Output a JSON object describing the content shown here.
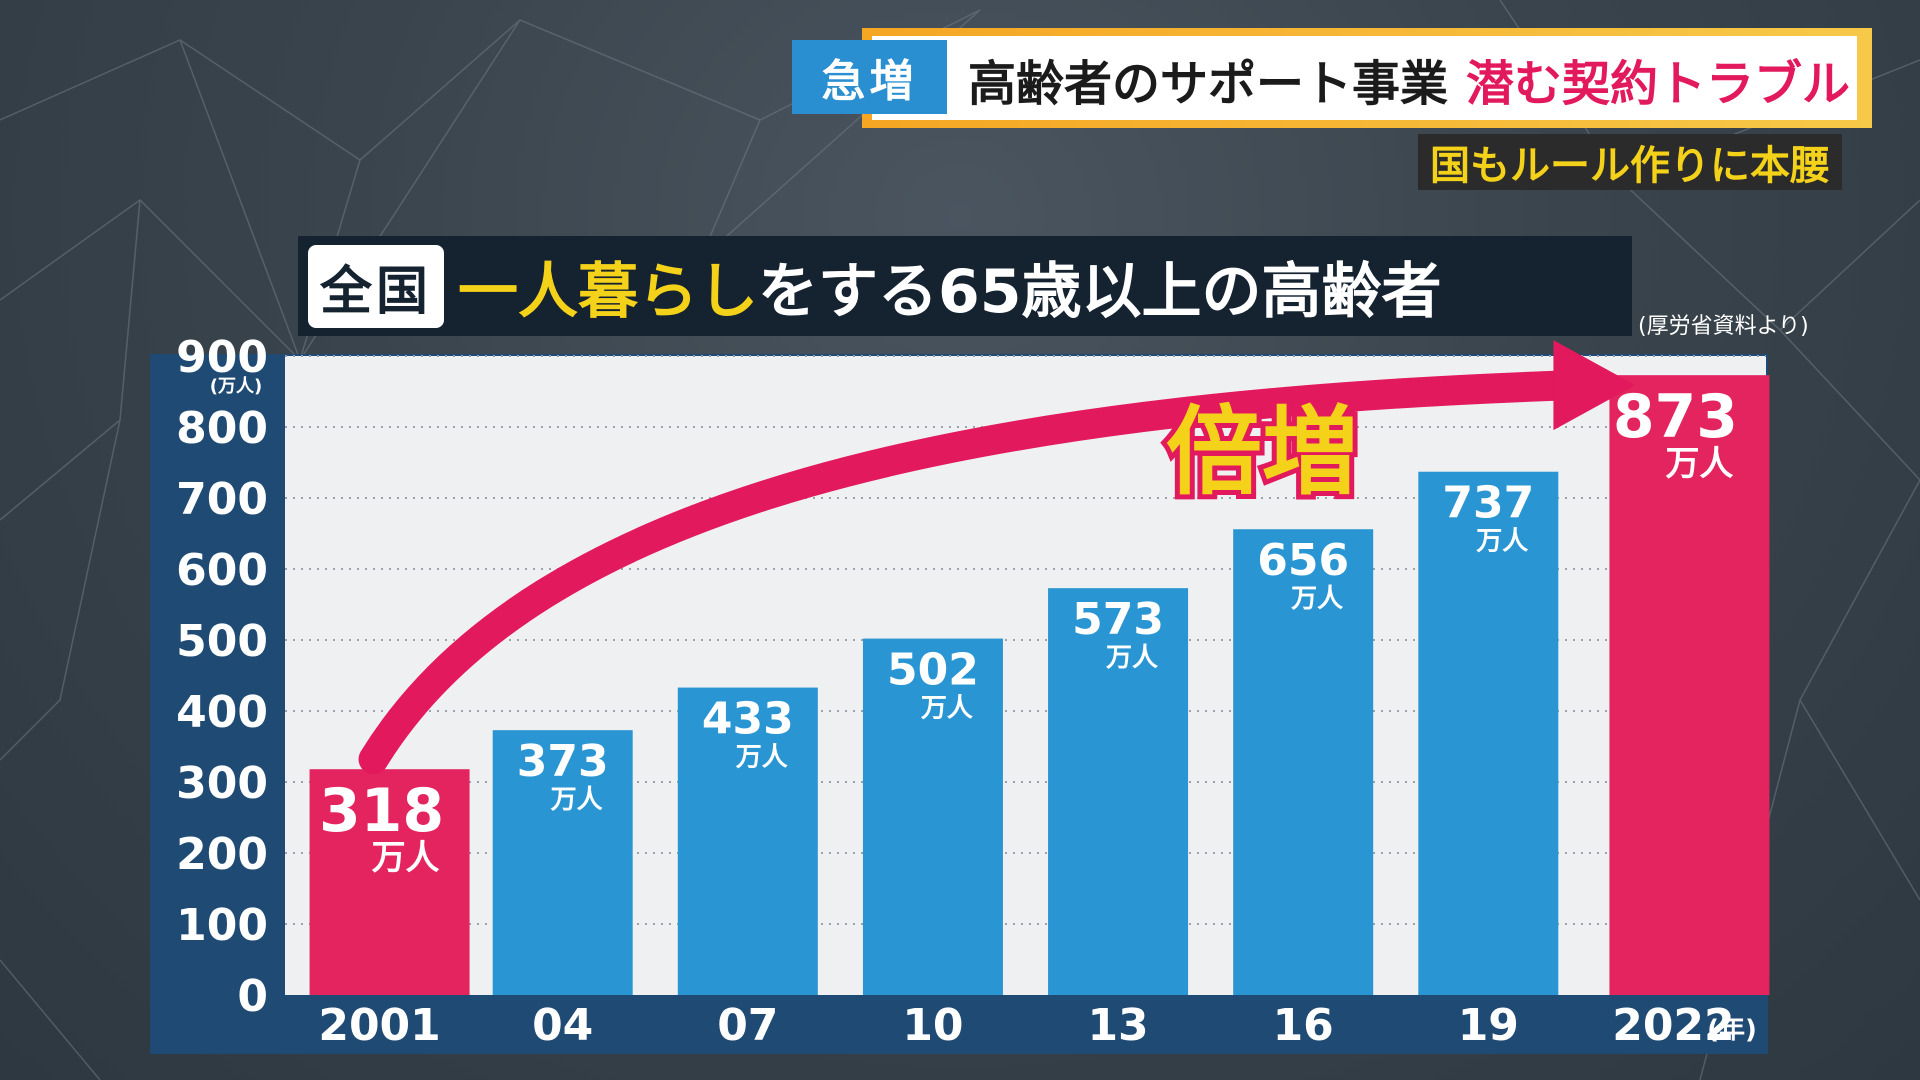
{
  "banner": {
    "badge": "急増",
    "headline_main": "高齢者のサポート事業",
    "headline_red": "潜む契約トラブル",
    "sub": "国もルール作りに本腰"
  },
  "chart_title": {
    "tag": "全国",
    "highlight": "一人暮らし",
    "rest": "をする65歳以上の高齢者",
    "source": "(厚労省資料より)"
  },
  "colors": {
    "highlight_bar": "#e3245f",
    "normal_bar": "#2a95d3",
    "accent_yellow": "#f5d21a"
  },
  "chart_data": {
    "type": "bar",
    "categories": [
      "2001",
      "04",
      "07",
      "10",
      "13",
      "16",
      "19",
      "2022"
    ],
    "values": [
      318,
      373,
      433,
      502,
      573,
      656,
      737,
      873
    ],
    "value_unit": "万人",
    "highlighted": [
      "2001",
      "2022"
    ],
    "ylim": [
      0,
      900
    ],
    "yticks": [
      0,
      100,
      200,
      300,
      400,
      500,
      600,
      700,
      800,
      900
    ],
    "ylabel": "(万人)",
    "xlabel": "(年)",
    "grid": true,
    "annotation": {
      "text": "倍増",
      "from": "2001",
      "to": "2022"
    }
  }
}
